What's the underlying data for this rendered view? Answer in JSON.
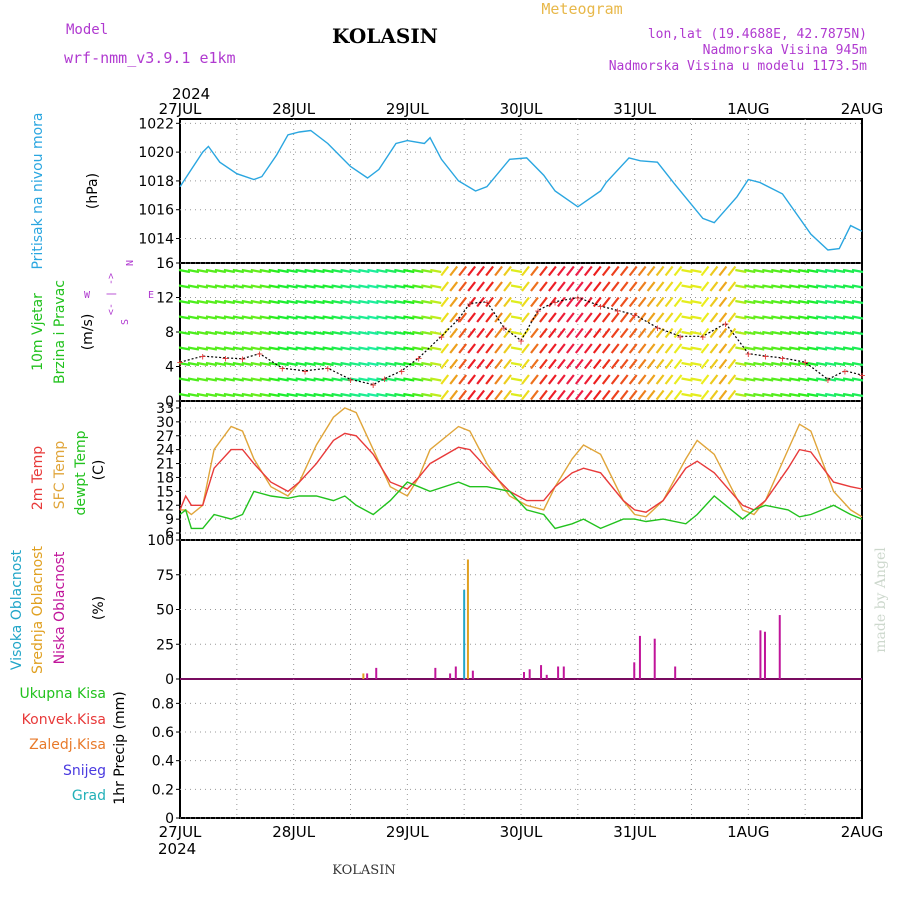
{
  "header": {
    "model_label": "Model",
    "model_name": "wrf-nmm_v3.9.1  e1km",
    "station": "KOLASIN",
    "product": "Meteogram",
    "lonlat": "lon,lat (19.4688E, 42.7875N)",
    "altitude": "Nadmorska Visina 945m",
    "model_altitude": "Nadmorska Visina u modelu 1173.5m"
  },
  "footer": {
    "station": "KOLASIN",
    "credit": "made by Angel"
  },
  "colors": {
    "pressure": "#2aa6e0",
    "temp2m": "#e83a3a",
    "sfc_temp": "#e0a53a",
    "dewpt": "#22c21e",
    "high_cloud": "#22a6c8",
    "mid_cloud": "#e0a020",
    "low_cloud": "#c0149a",
    "header_purple": "#b03ad0",
    "header_orange": "#e8b84a"
  },
  "time_axis": {
    "year_label": "2024",
    "ticks": [
      "27JUL",
      "28JUL",
      "29JUL",
      "30JUL",
      "31JUL",
      "1AUG",
      "2AUG"
    ]
  },
  "chart_data": [
    {
      "type": "line",
      "name": "pressure-panel",
      "ylabel": "Pritisak na nivou mora",
      "unit": "(hPa)",
      "yticks": [
        "1022",
        "1020",
        "1018",
        "1016",
        "1014"
      ],
      "ylim": [
        1012.3,
        1022.3
      ],
      "x_days": [
        0,
        0.1,
        0.2,
        0.25,
        0.35,
        0.5,
        0.65,
        0.72,
        0.85,
        0.95,
        1.05,
        1.15,
        1.3,
        1.5,
        1.65,
        1.75,
        1.9,
        2.0,
        2.15,
        2.2,
        2.3,
        2.45,
        2.6,
        2.7,
        2.9,
        3.05,
        3.2,
        3.3,
        3.5,
        3.7,
        3.75,
        3.95,
        4.05,
        4.2,
        4.35,
        4.6,
        4.7,
        4.9,
        5.0,
        5.1,
        5.3,
        5.55,
        5.7,
        5.8,
        5.9,
        6.0
      ],
      "series": [
        {
          "values": [
            1017.6,
            1018.8,
            1020.0,
            1020.4,
            1019.3,
            1018.5,
            1018.1,
            1018.3,
            1019.8,
            1021.2,
            1021.4,
            1021.5,
            1020.6,
            1019.0,
            1018.2,
            1018.8,
            1020.6,
            1020.8,
            1020.6,
            1021.0,
            1019.5,
            1018.0,
            1017.3,
            1017.6,
            1019.5,
            1019.6,
            1018.4,
            1017.3,
            1016.2,
            1017.3,
            1017.9,
            1019.6,
            1019.4,
            1019.3,
            1017.8,
            1015.4,
            1015.1,
            1016.9,
            1018.1,
            1017.9,
            1017.1,
            1014.3,
            1013.2,
            1013.3,
            1014.9,
            1014.5
          ]
        }
      ]
    },
    {
      "type": "line",
      "name": "wind-panel",
      "ylabel_lines": [
        "10m Vjetar",
        "Brzina i Pravac"
      ],
      "unit": "(m/s)",
      "compass": {
        "n": "N",
        "w": "W",
        "e": "E",
        "s": "S",
        "center": "<- | ->"
      },
      "yticks": [
        "16",
        "12",
        "8",
        "4",
        "0"
      ],
      "ylim": [
        0,
        16
      ],
      "x_days": [
        0,
        0.2,
        0.4,
        0.55,
        0.7,
        0.9,
        1.1,
        1.3,
        1.5,
        1.7,
        1.8,
        1.95,
        2.1,
        2.3,
        2.45,
        2.55,
        2.7,
        2.85,
        3.0,
        3.15,
        3.3,
        3.5,
        3.7,
        3.85,
        4.0,
        4.2,
        4.4,
        4.6,
        4.8,
        5.0,
        5.15,
        5.3,
        5.5,
        5.7,
        5.85,
        6.0
      ],
      "series": [
        {
          "name": "speed",
          "values": [
            4.5,
            5.2,
            5.0,
            4.9,
            5.5,
            3.8,
            3.5,
            3.8,
            2.5,
            1.9,
            2.6,
            3.5,
            5.0,
            7.5,
            9.5,
            11.3,
            11.5,
            8.5,
            7.0,
            10.5,
            11.5,
            12.0,
            11.0,
            10.5,
            10.0,
            8.5,
            7.5,
            7.5,
            9.0,
            5.5,
            5.2,
            5.0,
            4.5,
            2.5,
            3.5,
            3.0
          ]
        }
      ]
    },
    {
      "type": "line",
      "name": "temperature-panel",
      "ylabel_lines": [
        "2m Temp",
        "SFC Temp",
        "dewpt Temp"
      ],
      "unit": "(C)",
      "yticks": [
        "33",
        "30",
        "27",
        "24",
        "21",
        "18",
        "15",
        "12",
        "9",
        "6"
      ],
      "ylim": [
        4.5,
        34.5
      ],
      "x_days": [
        0,
        0.05,
        0.1,
        0.2,
        0.3,
        0.45,
        0.55,
        0.65,
        0.8,
        0.95,
        1.05,
        1.2,
        1.35,
        1.45,
        1.55,
        1.7,
        1.85,
        2.0,
        2.1,
        2.2,
        2.45,
        2.55,
        2.7,
        2.9,
        3.05,
        3.2,
        3.3,
        3.45,
        3.55,
        3.7,
        3.9,
        4.0,
        4.1,
        4.25,
        4.45,
        4.55,
        4.7,
        4.95,
        5.05,
        5.15,
        5.35,
        5.45,
        5.55,
        5.75,
        5.9,
        6.0
      ],
      "series": [
        {
          "name": "2m Temp",
          "values": [
            11,
            14,
            12,
            12,
            20,
            24,
            24,
            21,
            17,
            15,
            17,
            21,
            26,
            27.5,
            27,
            23,
            17,
            15.5,
            18,
            21,
            24.5,
            24,
            20,
            15,
            13,
            13,
            16,
            19,
            20,
            19,
            13,
            11,
            10.5,
            13,
            20,
            21.5,
            19,
            12,
            11,
            13,
            20,
            24,
            23.5,
            17,
            16,
            15.5
          ]
        },
        {
          "name": "SFC Temp",
          "values": [
            11,
            11,
            10,
            12,
            24,
            29,
            28,
            22,
            16,
            14,
            17,
            25,
            31,
            33,
            32,
            24,
            16,
            14,
            18,
            24,
            29,
            28,
            21,
            14,
            12,
            11,
            16,
            22,
            25,
            23,
            13,
            10,
            9.5,
            13,
            22,
            26,
            23,
            11,
            10,
            13,
            24,
            29.5,
            28,
            15,
            11,
            9.5
          ]
        },
        {
          "name": "dewpt Temp",
          "values": [
            10,
            11,
            7,
            7,
            10,
            9,
            10,
            15,
            14,
            13.5,
            14,
            14,
            13,
            14,
            12,
            10,
            13,
            17,
            16,
            15,
            17,
            16,
            16,
            15,
            11,
            10,
            7,
            8,
            9,
            7,
            9,
            9,
            8.5,
            9,
            8,
            10,
            14,
            9,
            11,
            12,
            11,
            9.5,
            10,
            12,
            10,
            9
          ]
        }
      ]
    },
    {
      "type": "bar",
      "name": "cloud-panel",
      "ylabel_lines": [
        "Visoka Oblacnost",
        "Srednja Oblacnost",
        "Niska Oblacnost"
      ],
      "unit": "(%)",
      "yticks": [
        "100",
        "75",
        "50",
        "25",
        "0"
      ],
      "ylim": [
        0,
        100
      ],
      "series": [
        {
          "name": "Visoka Oblacnost",
          "x_days": [
            2.5
          ],
          "values": [
            64
          ]
        },
        {
          "name": "Srednja Oblacnost",
          "x_days": [
            1.6,
            2.52
          ],
          "values": [
            4,
            86
          ]
        },
        {
          "name": "Niska Oblacnost",
          "x_days": [
            1.62,
            1.7,
            2.22,
            2.35,
            2.4,
            2.55,
            3.0,
            3.05,
            3.15,
            3.2,
            3.3,
            3.35,
            3.97,
            4.02,
            4.15,
            4.33,
            5.08,
            5.12,
            5.25
          ],
          "values": [
            4,
            8,
            8,
            4,
            9,
            6,
            5,
            7,
            10,
            3,
            9,
            9,
            12,
            31,
            29,
            9,
            35,
            34,
            46
          ]
        }
      ]
    },
    {
      "type": "bar",
      "name": "precip-panel",
      "ylabel": "1hr Precip (mm)",
      "legend": [
        "Ukupna Kisa",
        "Konvek.Kisa",
        "Zaledj.Kisa",
        "Snijeg",
        "Grad"
      ],
      "yticks": [
        "0.8",
        "0.6",
        "0.4",
        "0.2",
        "0"
      ],
      "ylim": [
        0,
        0.97
      ],
      "values": []
    }
  ]
}
